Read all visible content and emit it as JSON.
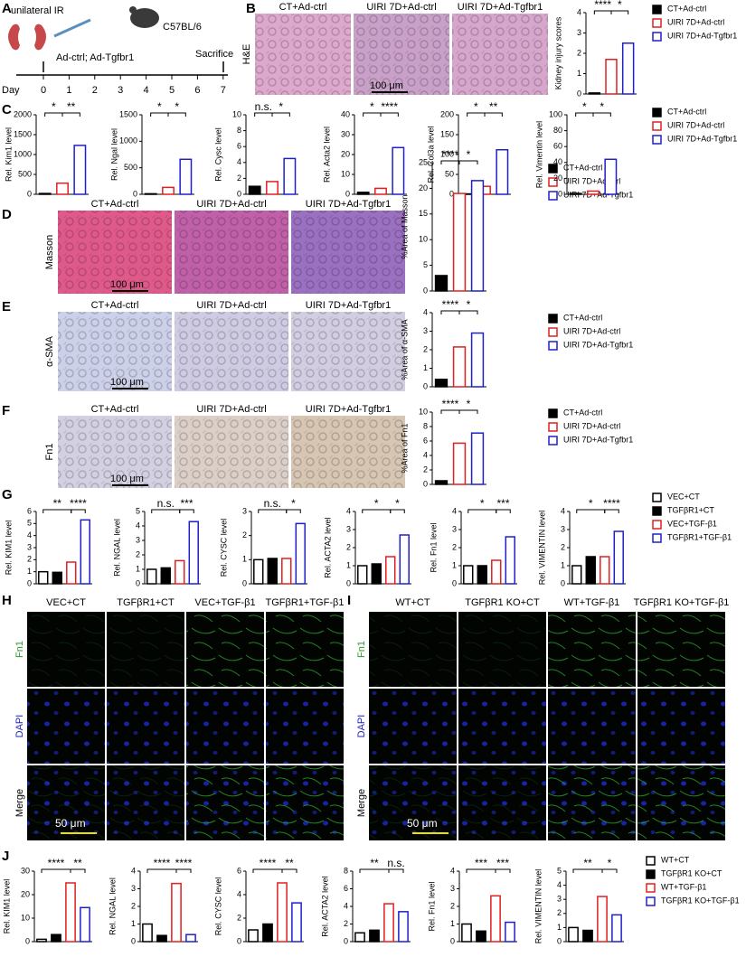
{
  "panel_labels": [
    "A",
    "B",
    "C",
    "D",
    "E",
    "F",
    "G",
    "H",
    "I",
    "J"
  ],
  "schematic": {
    "ir": "unilateral IR",
    "mouse": "C57BL/6",
    "treatment": "Ad-ctrl; Ad-Tgfbr1",
    "sacrifice": "Sacrifice",
    "day": "Day",
    "days": [
      0,
      1,
      2,
      3,
      4,
      5,
      6,
      7
    ]
  },
  "histology": [
    {
      "stain": "H&E",
      "titles": [
        "CT+Ad-ctrl",
        "UIRI 7D+Ad-ctrl",
        "UIRI 7D+Ad-Tgfbr1"
      ],
      "scale": "100 μm"
    },
    {
      "stain": "Masson",
      "titles": [
        "CT+Ad-ctrl",
        "UIRI 7D+Ad-ctrl",
        "UIRI 7D+Ad-Tgfbr1"
      ],
      "scale": "100 μm"
    },
    {
      "stain": "α-SMA",
      "titles": [
        "CT+Ad-ctrl",
        "UIRI 7D+Ad-ctrl",
        "UIRI 7D+Ad-Tgfbr1"
      ],
      "scale": "100 μm"
    },
    {
      "stain": "Fn1",
      "titles": [
        "CT+Ad-ctrl",
        "UIRI 7D+Ad-ctrl",
        "UIRI 7D+Ad-Tgfbr1"
      ],
      "scale": "100 μm"
    }
  ],
  "fluorescence": [
    {
      "titles": [
        "VEC+CT",
        "TGFβR1+CT",
        "VEC+TGF-β1",
        "TGFβR1+TGF-β1"
      ],
      "rows": [
        "Fn1",
        "DAPI",
        "Merge"
      ],
      "scale": "50 μm"
    },
    {
      "titles": [
        "WT+CT",
        "TGFβR1 KO+CT",
        "WT+TGF-β1",
        "TGFβR1 KO+TGF-β1"
      ],
      "rows": [
        "Fn1",
        "DAPI",
        "Merge"
      ],
      "scale": "50 μm"
    }
  ],
  "legends": [
    {
      "series": [
        {
          "name": "CT+Ad-ctrl",
          "color": "#000000",
          "filled": true
        },
        {
          "name": "UIRI 7D+Ad-ctrl",
          "color": "#e02020",
          "filled": false
        },
        {
          "name": "UIRI 7D+Ad-Tgfbr1",
          "color": "#2020c8",
          "filled": false
        }
      ]
    },
    {
      "series": [
        {
          "name": "CT+Ad-ctrl",
          "color": "#000000",
          "filled": true
        },
        {
          "name": "UIRI 7D+Ad-ctrl",
          "color": "#e02020",
          "filled": false
        },
        {
          "name": "UIRI 7D+Ad-Tgfbr1",
          "color": "#2020c8",
          "filled": false
        }
      ]
    },
    {
      "series": [
        {
          "name": "CT+Ad-ctrl",
          "color": "#000000",
          "filled": true
        },
        {
          "name": "UIRI 7D+Ad-ctrl",
          "color": "#e02020",
          "filled": false
        },
        {
          "name": "UIRI 7D+Ad-Tgfbr1",
          "color": "#2020c8",
          "filled": false
        }
      ]
    },
    {
      "series": [
        {
          "name": "CT+Ad-ctrl",
          "color": "#000000",
          "filled": true
        },
        {
          "name": "UIRI 7D+Ad-ctrl",
          "color": "#e02020",
          "filled": false
        },
        {
          "name": "UIRI 7D+Ad-Tgfbr1",
          "color": "#2020c8",
          "filled": false
        }
      ]
    },
    {
      "series": [
        {
          "name": "CT+Ad-ctrl",
          "color": "#000000",
          "filled": true
        },
        {
          "name": "UIRI 7D+Ad-ctrl",
          "color": "#e02020",
          "filled": false
        },
        {
          "name": "UIRI 7D+Ad-Tgfbr1",
          "color": "#2020c8",
          "filled": false
        }
      ]
    },
    {
      "series": [
        {
          "name": "VEC+CT",
          "color": "#000000",
          "filled": false
        },
        {
          "name": "TGFβR1+CT",
          "color": "#000000",
          "filled": true
        },
        {
          "name": "VEC+TGF-β1",
          "color": "#e02020",
          "filled": false
        },
        {
          "name": "TGFβR1+TGF-β1",
          "color": "#2020c8",
          "filled": false
        }
      ]
    },
    {
      "series": [
        {
          "name": "WT+CT",
          "color": "#000000",
          "filled": false
        },
        {
          "name": "TGFβR1 KO+CT",
          "color": "#000000",
          "filled": true
        },
        {
          "name": "WT+TGF-β1",
          "color": "#e02020",
          "filled": false
        },
        {
          "name": "TGFβR1 KO+TGF-β1",
          "color": "#2020c8",
          "filled": false
        }
      ]
    }
  ],
  "chart_data": [
    {
      "type": "bar",
      "ylabel": "Kidney injury scores",
      "values": [
        0.05,
        1.7,
        2.5
      ],
      "ylim": [
        0,
        4
      ],
      "yticks": [
        0,
        1,
        2,
        3,
        4
      ],
      "annotations": [
        "****",
        "*"
      ]
    },
    {
      "type": "bar",
      "ylabel": "Rel. Kim1 level",
      "values": [
        20,
        280,
        1230
      ],
      "ylim": [
        0,
        2000
      ],
      "yticks": [
        0,
        500,
        1000,
        1500,
        2000
      ],
      "annotations": [
        "*",
        "**"
      ]
    },
    {
      "type": "bar",
      "ylabel": "Rel. Ngal level",
      "values": [
        10,
        130,
        660
      ],
      "ylim": [
        0,
        1500
      ],
      "yticks": [
        0,
        500,
        1000,
        1500
      ],
      "annotations": [
        "*",
        "*"
      ]
    },
    {
      "type": "bar",
      "ylabel": "Rel. Cysc level",
      "values": [
        1.0,
        1.6,
        4.5
      ],
      "ylim": [
        0,
        10
      ],
      "yticks": [
        0,
        2,
        4,
        6,
        8,
        10
      ],
      "annotations": [
        "n.s.",
        "*"
      ]
    },
    {
      "type": "bar",
      "ylabel": "Rel. Acta2 level",
      "values": [
        1,
        3,
        23.5
      ],
      "ylim": [
        0,
        40
      ],
      "yticks": [
        0,
        10,
        20,
        30,
        40
      ],
      "annotations": [
        "*",
        "****"
      ]
    },
    {
      "type": "bar",
      "ylabel": "Rel. Col3a level",
      "values": [
        1,
        20,
        112
      ],
      "ylim": [
        0,
        200
      ],
      "yticks": [
        0,
        50,
        100,
        150,
        200
      ],
      "annotations": [
        "*",
        "**"
      ]
    },
    {
      "type": "bar",
      "ylabel": "Rel. Vimentin level",
      "values": [
        1,
        4,
        44
      ],
      "ylim": [
        0,
        100
      ],
      "yticks": [
        0,
        20,
        40,
        60,
        80,
        100
      ],
      "annotations": [
        "*",
        "*"
      ]
    },
    {
      "type": "bar",
      "ylabel": "%Area of Masson",
      "values": [
        3,
        19,
        21.5
      ],
      "ylim": [
        0,
        25
      ],
      "yticks": [
        0,
        5,
        10,
        15,
        20,
        25
      ],
      "annotations": [
        "****",
        "*"
      ]
    },
    {
      "type": "bar",
      "ylabel": "%Area of α-SMA",
      "values": [
        0.4,
        2.15,
        2.9
      ],
      "ylim": [
        0,
        4
      ],
      "yticks": [
        0,
        1,
        2,
        3,
        4
      ],
      "annotations": [
        "****",
        "*"
      ]
    },
    {
      "type": "bar",
      "ylabel": "%Area of Fn1",
      "values": [
        0.5,
        5.7,
        7.1
      ],
      "ylim": [
        0,
        10
      ],
      "yticks": [
        0,
        2,
        4,
        6,
        8,
        10
      ],
      "annotations": [
        "****",
        "*"
      ]
    },
    {
      "type": "bar",
      "ylabel": "Rel. KIM1 level",
      "values": [
        1,
        0.95,
        1.8,
        5.3
      ],
      "ylim": [
        0,
        6
      ],
      "yticks": [
        0,
        1,
        2,
        3,
        4,
        5,
        6
      ],
      "annotations": [
        "**",
        "****"
      ]
    },
    {
      "type": "bar",
      "ylabel": "Rel. NGAL level",
      "values": [
        1,
        1.1,
        1.6,
        4.3
      ],
      "ylim": [
        0,
        5
      ],
      "yticks": [
        0,
        1,
        2,
        3,
        4,
        5
      ],
      "annotations": [
        "n.s.",
        "***"
      ]
    },
    {
      "type": "bar",
      "ylabel": "Rel. CYSC level",
      "values": [
        1,
        1.05,
        1.05,
        2.5
      ],
      "ylim": [
        0,
        3
      ],
      "yticks": [
        0,
        1,
        2,
        3
      ],
      "annotations": [
        "n.s.",
        "*"
      ]
    },
    {
      "type": "bar",
      "ylabel": "Rel. ACTA2 level",
      "values": [
        1,
        1.1,
        1.5,
        2.7
      ],
      "ylim": [
        0,
        4
      ],
      "yticks": [
        0,
        1,
        2,
        3,
        4
      ],
      "annotations": [
        "*",
        "*"
      ]
    },
    {
      "type": "bar",
      "ylabel": "Rel. Fn1 level",
      "values": [
        1,
        1,
        1.3,
        2.6
      ],
      "ylim": [
        0,
        4
      ],
      "yticks": [
        0,
        1,
        2,
        3,
        4
      ],
      "annotations": [
        "*",
        "***"
      ]
    },
    {
      "type": "bar",
      "ylabel": "Rel. VIMENTIN level",
      "values": [
        1,
        1.5,
        1.5,
        2.9
      ],
      "ylim": [
        0,
        4
      ],
      "yticks": [
        0,
        1,
        2,
        3,
        4
      ],
      "annotations": [
        "*",
        "****"
      ]
    },
    {
      "type": "bar",
      "ylabel": "Rel. KIM1 level",
      "values": [
        1,
        3,
        25,
        14.5
      ],
      "ylim": [
        0,
        30
      ],
      "yticks": [
        0,
        10,
        20,
        30
      ],
      "annotations": [
        "****",
        "**"
      ]
    },
    {
      "type": "bar",
      "ylabel": "Rel. NGAL level",
      "values": [
        1,
        0.35,
        3.3,
        0.4
      ],
      "ylim": [
        0,
        4
      ],
      "yticks": [
        0,
        1,
        2,
        3,
        4
      ],
      "annotations": [
        "****",
        "****"
      ]
    },
    {
      "type": "bar",
      "ylabel": "Rel. CYSC level",
      "values": [
        1,
        1.5,
        5,
        3.3
      ],
      "ylim": [
        0,
        6
      ],
      "yticks": [
        0,
        2,
        4,
        6
      ],
      "annotations": [
        "****",
        "**"
      ]
    },
    {
      "type": "bar",
      "ylabel": "Rel. ACTA2 level",
      "values": [
        1,
        1.3,
        4.3,
        3.4
      ],
      "ylim": [
        0,
        8
      ],
      "yticks": [
        0,
        2,
        4,
        6,
        8
      ],
      "annotations": [
        "**",
        "n.s."
      ]
    },
    {
      "type": "bar",
      "ylabel": "Rel. Fn1 level",
      "values": [
        1,
        0.6,
        2.6,
        1.1
      ],
      "ylim": [
        0,
        4
      ],
      "yticks": [
        0,
        1,
        2,
        3,
        4
      ],
      "annotations": [
        "***",
        "***"
      ]
    },
    {
      "type": "bar",
      "ylabel": "Rel. VIMENTIN level",
      "values": [
        1,
        0.8,
        3.2,
        1.9
      ],
      "ylim": [
        0,
        5
      ],
      "yticks": [
        0,
        1,
        2,
        3,
        4,
        5
      ],
      "annotations": [
        "**",
        "*"
      ]
    }
  ]
}
